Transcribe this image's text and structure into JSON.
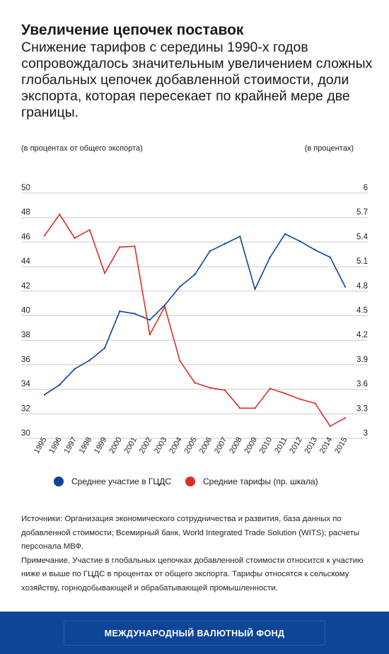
{
  "title": "Увеличение цепочек поставок",
  "subtitle": "Снижение тарифов с середины 1990-х годов сопровождалось значительным увеличением сложных глобальных цепочек добавленной стоимости, доли экспорта, которая пересекает по крайней мере две границы.",
  "left_axis_label": "(в процентах от общего экспорта)",
  "right_axis_label": "(в процентах)",
  "legend": [
    {
      "label": "Среднее участие в ГЦДС",
      "color": "#0e4596"
    },
    {
      "label": "Средние тарифы (пр. шкала)",
      "color": "#d93025"
    }
  ],
  "notes": {
    "sources": "Источники: Организация экономического сотрудничества и развития, база данных по добавленной стоимости; Всемирный банк, World Integrated Trade Solution (WITS); расчеты персонала МВФ.",
    "note": "Примечание. Участие в глобальных цепочках добавленной стоимости относится к участию ниже и выше по ГЦДС в процентах от общего экспорта. Тарифы относятся к сельскому хозяйству, горнодобывающей и обрабатывающей промышленности."
  },
  "footer": "МЕЖДУНАРОДНЫЙ ВАЛЮТНЫЙ ФОНД",
  "chart_data": {
    "type": "line",
    "x": [
      "1995",
      "1996",
      "1997",
      "1998",
      "1999",
      "2000",
      "2001",
      "2002",
      "2003",
      "2004",
      "2005",
      "2006",
      "2007",
      "2008",
      "2009",
      "2010",
      "2011",
      "2012",
      "2013",
      "2014",
      "2015"
    ],
    "y_left_ticks": [
      "50",
      "48",
      "46",
      "44",
      "42",
      "40",
      "38",
      "36",
      "34",
      "32",
      "30"
    ],
    "y_right_ticks": [
      "6",
      "5.7",
      "5.4",
      "5.1",
      "4.8",
      "4.5",
      "4.2",
      "3.9",
      "3.6",
      "3.3",
      "3"
    ],
    "ylim_left": [
      30,
      50
    ],
    "ylim_right": [
      3,
      6
    ],
    "grid": true,
    "legend_position": "bottom",
    "series": [
      {
        "name": "Среднее участие в ГЦДС",
        "axis": "left",
        "color": "#0e4596",
        "values": [
          33.1,
          33.9,
          35.2,
          35.9,
          36.9,
          39.9,
          39.7,
          39.2,
          40.4,
          41.9,
          42.9,
          44.8,
          45.4,
          46.0,
          41.7,
          44.3,
          46.2,
          45.6,
          44.9,
          44.3,
          41.9
        ]
      },
      {
        "name": "Средние тарифы (пр. шкала)",
        "axis": "right",
        "color": "#d93025",
        "values": [
          5.41,
          5.67,
          5.38,
          5.48,
          4.95,
          5.27,
          5.28,
          4.2,
          4.54,
          3.88,
          3.61,
          3.55,
          3.52,
          3.3,
          3.3,
          3.54,
          3.48,
          3.41,
          3.36,
          3.08,
          3.18
        ]
      }
    ]
  }
}
